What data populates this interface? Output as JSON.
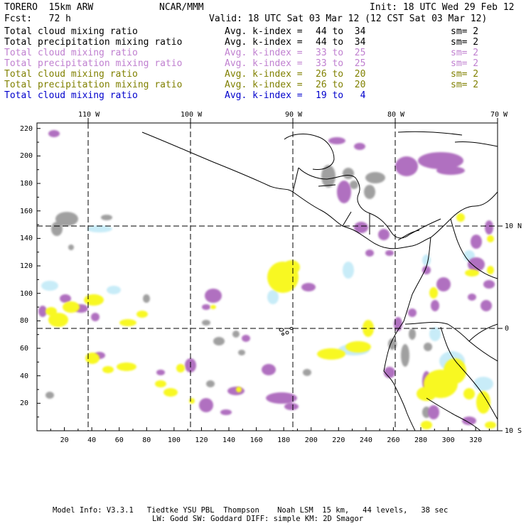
{
  "header": {
    "model": "TORERO  15km ARW",
    "center": "NCAR/MMM",
    "init": "Init: 18 UTC Wed 29 Feb 12",
    "fcst": "Fcst:   72 h",
    "valid": "Valid: 18 UTC Sat 03 Mar 12 (12 CST Sat 03 Mar 12)"
  },
  "legend": [
    {
      "field": "Total cloud mixing ratio",
      "kindex": "Avg. k-index =",
      "range": "44 to  34",
      "sm": "sm= 2",
      "color": "#000000"
    },
    {
      "field": "Total precipitation mixing ratio",
      "kindex": "Avg. k-index =",
      "range": "44 to  34",
      "sm": "sm= 2",
      "color": "#000000"
    },
    {
      "field": "Total cloud mixing ratio",
      "kindex": "Avg. k-index =",
      "range": "33 to  25",
      "sm": "sm= 2",
      "color": "#c080d0"
    },
    {
      "field": "Total precipitation mixing ratio",
      "kindex": "Avg. k-index =",
      "range": "33 to  25",
      "sm": "sm= 2",
      "color": "#c080d0"
    },
    {
      "field": "Total cloud mixing ratio",
      "kindex": "Avg. k-index =",
      "range": "26 to  20",
      "sm": "sm= 2",
      "color": "#808000"
    },
    {
      "field": "Total precipitation mixing ratio",
      "kindex": "Avg. k-index =",
      "range": "26 to  20",
      "sm": "sm= 2",
      "color": "#808000"
    },
    {
      "field": "Total cloud mixing ratio",
      "kindex": "Avg. k-index =",
      "range": "19 to   4",
      "sm": "",
      "color": "#0000cc"
    }
  ],
  "axes": {
    "top_lon": [
      "110 W",
      "100 W",
      "90 W",
      "80 W",
      "70 W"
    ],
    "right_lat": [
      "10 N",
      "0",
      "10 S"
    ],
    "left_y": [
      "220",
      "200",
      "180",
      "160",
      "140",
      "120",
      "100",
      "80",
      "60",
      "40",
      "20"
    ],
    "bottom_x": [
      "20",
      "40",
      "60",
      "80",
      "100",
      "120",
      "140",
      "160",
      "180",
      "200",
      "220",
      "240",
      "260",
      "280",
      "300",
      "320"
    ]
  },
  "colors": {
    "gray": "#a0a0a0",
    "purple": "#b070c0",
    "yellow": "#f8f820",
    "lightblue": "#c8ecf8"
  },
  "footer": {
    "line1": "Model Info: V3.3.1   Tiedtke YSU PBL  Thompson    Noah LSM  15 km,   44 levels,   38 sec",
    "line2": "LW: Godd SW: Goddard DIFF: simple KM: 2D Smagor"
  }
}
